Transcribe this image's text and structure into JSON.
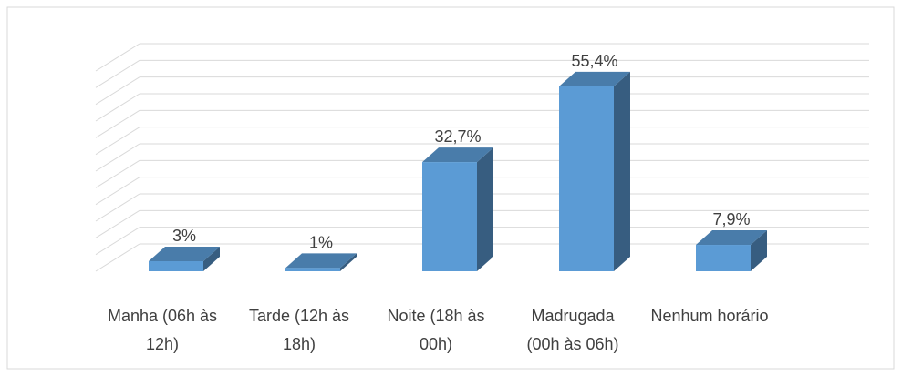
{
  "chart_data": {
    "type": "bar3d",
    "categories": [
      "Manha (06h às 12h)",
      "Tarde (12h às 18h)",
      "Noite (18h às 00h)",
      "Madrugada (00h às 06h)",
      "Nenhum horário"
    ],
    "values": [
      3,
      1,
      32.7,
      55.4,
      7.9
    ],
    "value_labels": [
      "3%",
      "1%",
      "32,7%",
      "55,4%",
      "7,9%"
    ],
    "color": "#5b9bd5",
    "ylim": [
      0,
      60
    ],
    "grid": true
  }
}
